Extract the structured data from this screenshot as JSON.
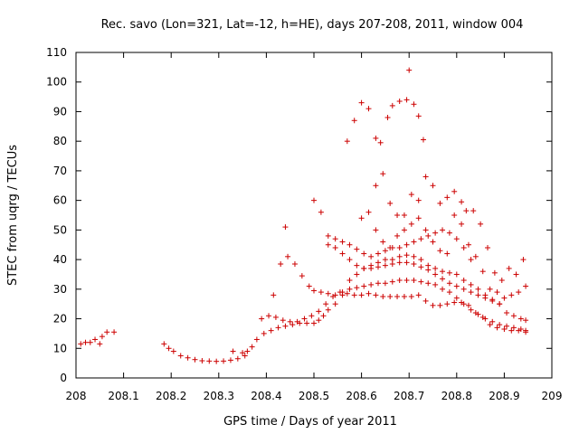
{
  "chart_data": {
    "type": "scatter",
    "title": "Rec. savo (Lon=321, Lat=-12, h=HE), days 207-208, 2011, window 004",
    "xlabel": "GPS time / Days of year 2011",
    "ylabel": "STEC from uqrg / TECUs",
    "xlim": [
      208,
      209
    ],
    "ylim": [
      0,
      110
    ],
    "xticks": [
      "208",
      "208.1",
      "208.2",
      "208.3",
      "208.4",
      "208.5",
      "208.6",
      "208.7",
      "208.8",
      "208.9",
      "209"
    ],
    "yticks": [
      "0",
      "10",
      "20",
      "30",
      "40",
      "50",
      "60",
      "70",
      "80",
      "90",
      "100",
      "110"
    ],
    "grid": false,
    "marker": "+",
    "colors": {
      "points": "#cc0000",
      "axes": "#000000"
    },
    "series": [
      {
        "name": "STEC",
        "points": [
          [
            208.01,
            11.5
          ],
          [
            208.02,
            12
          ],
          [
            208.03,
            12
          ],
          [
            208.04,
            13
          ],
          [
            208.05,
            11.5
          ],
          [
            208.055,
            14
          ],
          [
            208.065,
            15.5
          ],
          [
            208.08,
            15.5
          ],
          [
            208.185,
            11.5
          ],
          [
            208.195,
            10
          ],
          [
            208.205,
            9
          ],
          [
            208.22,
            7.5
          ],
          [
            208.235,
            6.8
          ],
          [
            208.25,
            6.2
          ],
          [
            208.265,
            5.8
          ],
          [
            208.28,
            5.7
          ],
          [
            208.295,
            5.6
          ],
          [
            208.31,
            5.7
          ],
          [
            208.325,
            6
          ],
          [
            208.34,
            6.5
          ],
          [
            208.355,
            7.5
          ],
          [
            208.36,
            9
          ],
          [
            208.37,
            10.5
          ],
          [
            208.33,
            9
          ],
          [
            208.35,
            8.5
          ],
          [
            208.38,
            13
          ],
          [
            208.395,
            15
          ],
          [
            208.41,
            16
          ],
          [
            208.425,
            17
          ],
          [
            208.44,
            17.5
          ],
          [
            208.455,
            18
          ],
          [
            208.47,
            18.5
          ],
          [
            208.485,
            18.5
          ],
          [
            208.5,
            18.5
          ],
          [
            208.51,
            19.5
          ],
          [
            208.52,
            21
          ],
          [
            208.53,
            23
          ],
          [
            208.545,
            25
          ],
          [
            208.56,
            28
          ],
          [
            208.575,
            30
          ],
          [
            208.59,
            30.5
          ],
          [
            208.605,
            31
          ],
          [
            208.62,
            31.5
          ],
          [
            208.635,
            32
          ],
          [
            208.65,
            32
          ],
          [
            208.665,
            32.5
          ],
          [
            208.68,
            33
          ],
          [
            208.695,
            33
          ],
          [
            208.71,
            33
          ],
          [
            208.725,
            32.5
          ],
          [
            208.74,
            32
          ],
          [
            208.755,
            31.5
          ],
          [
            208.77,
            30
          ],
          [
            208.785,
            29
          ],
          [
            208.8,
            27
          ],
          [
            208.815,
            25
          ],
          [
            208.83,
            23
          ],
          [
            208.845,
            21.5
          ],
          [
            208.86,
            20
          ],
          [
            208.875,
            19
          ],
          [
            208.89,
            18
          ],
          [
            208.905,
            17.5
          ],
          [
            208.92,
            17
          ],
          [
            208.935,
            16.5
          ],
          [
            208.945,
            16
          ],
          [
            208.39,
            20
          ],
          [
            208.405,
            21
          ],
          [
            208.42,
            20.5
          ],
          [
            208.435,
            19.5
          ],
          [
            208.45,
            19
          ],
          [
            208.465,
            19
          ],
          [
            208.48,
            20
          ],
          [
            208.495,
            21
          ],
          [
            208.51,
            22.5
          ],
          [
            208.525,
            25
          ],
          [
            208.54,
            27.5
          ],
          [
            208.555,
            29
          ],
          [
            208.57,
            28.5
          ],
          [
            208.585,
            28
          ],
          [
            208.6,
            28
          ],
          [
            208.615,
            28.5
          ],
          [
            208.63,
            28
          ],
          [
            208.645,
            27.5
          ],
          [
            208.66,
            27.5
          ],
          [
            208.675,
            27.5
          ],
          [
            208.69,
            27.5
          ],
          [
            208.705,
            27.5
          ],
          [
            208.72,
            28
          ],
          [
            208.735,
            26
          ],
          [
            208.75,
            24.5
          ],
          [
            208.765,
            24.5
          ],
          [
            208.78,
            25
          ],
          [
            208.795,
            25.5
          ],
          [
            208.81,
            25.5
          ],
          [
            208.825,
            24.5
          ],
          [
            208.84,
            22
          ],
          [
            208.855,
            20.5
          ],
          [
            208.87,
            18
          ],
          [
            208.885,
            17
          ],
          [
            208.9,
            16.5
          ],
          [
            208.915,
            16
          ],
          [
            208.93,
            16
          ],
          [
            208.945,
            15.5
          ],
          [
            208.415,
            28
          ],
          [
            208.43,
            38.5
          ],
          [
            208.445,
            41
          ],
          [
            208.46,
            38.5
          ],
          [
            208.475,
            34.5
          ],
          [
            208.49,
            31
          ],
          [
            208.5,
            29.5
          ],
          [
            208.515,
            29
          ],
          [
            208.53,
            28.5
          ],
          [
            208.545,
            28
          ],
          [
            208.56,
            29
          ],
          [
            208.575,
            33
          ],
          [
            208.59,
            35
          ],
          [
            208.605,
            37
          ],
          [
            208.62,
            38
          ],
          [
            208.635,
            39
          ],
          [
            208.65,
            40
          ],
          [
            208.665,
            40
          ],
          [
            208.68,
            41
          ],
          [
            208.695,
            41.5
          ],
          [
            208.71,
            41
          ],
          [
            208.725,
            40
          ],
          [
            208.74,
            38
          ],
          [
            208.755,
            37
          ],
          [
            208.77,
            36
          ],
          [
            208.785,
            35.5
          ],
          [
            208.8,
            35
          ],
          [
            208.815,
            33
          ],
          [
            208.83,
            31.5
          ],
          [
            208.845,
            30
          ],
          [
            208.86,
            28
          ],
          [
            208.875,
            26.5
          ],
          [
            208.89,
            25
          ],
          [
            208.905,
            22
          ],
          [
            208.92,
            21
          ],
          [
            208.935,
            20
          ],
          [
            208.945,
            19.5
          ],
          [
            208.44,
            51
          ],
          [
            208.5,
            60
          ],
          [
            208.515,
            56
          ],
          [
            208.53,
            48
          ],
          [
            208.545,
            44
          ],
          [
            208.56,
            42
          ],
          [
            208.575,
            40
          ],
          [
            208.59,
            38
          ],
          [
            208.605,
            37
          ],
          [
            208.62,
            37
          ],
          [
            208.635,
            37.5
          ],
          [
            208.65,
            38
          ],
          [
            208.665,
            38.5
          ],
          [
            208.68,
            39
          ],
          [
            208.695,
            39
          ],
          [
            208.71,
            38.5
          ],
          [
            208.725,
            37.5
          ],
          [
            208.74,
            36.5
          ],
          [
            208.755,
            35
          ],
          [
            208.77,
            33.5
          ],
          [
            208.785,
            32
          ],
          [
            208.8,
            31
          ],
          [
            208.815,
            30
          ],
          [
            208.83,
            29
          ],
          [
            208.845,
            28
          ],
          [
            208.86,
            27
          ],
          [
            208.875,
            26
          ],
          [
            208.89,
            25
          ],
          [
            208.57,
            80
          ],
          [
            208.585,
            87
          ],
          [
            208.6,
            93
          ],
          [
            208.615,
            91
          ],
          [
            208.63,
            81
          ],
          [
            208.64,
            79.5
          ],
          [
            208.655,
            88
          ],
          [
            208.665,
            92
          ],
          [
            208.68,
            93.5
          ],
          [
            208.695,
            94
          ],
          [
            208.7,
            104
          ],
          [
            208.71,
            92.5
          ],
          [
            208.72,
            88.5
          ],
          [
            208.73,
            80.5
          ],
          [
            208.63,
            65
          ],
          [
            208.645,
            69
          ],
          [
            208.66,
            59
          ],
          [
            208.675,
            55
          ],
          [
            208.69,
            55
          ],
          [
            208.705,
            62
          ],
          [
            208.72,
            60
          ],
          [
            208.735,
            68
          ],
          [
            208.75,
            65
          ],
          [
            208.765,
            59
          ],
          [
            208.78,
            61
          ],
          [
            208.795,
            63
          ],
          [
            208.81,
            59.5
          ],
          [
            208.82,
            56.5
          ],
          [
            208.835,
            56.5
          ],
          [
            208.85,
            52
          ],
          [
            208.865,
            44
          ],
          [
            208.88,
            35.5
          ],
          [
            208.895,
            33
          ],
          [
            208.91,
            37
          ],
          [
            208.925,
            35
          ],
          [
            208.94,
            40
          ],
          [
            208.6,
            54
          ],
          [
            208.615,
            56
          ],
          [
            208.63,
            50
          ],
          [
            208.645,
            46
          ],
          [
            208.66,
            44
          ],
          [
            208.675,
            48
          ],
          [
            208.69,
            50
          ],
          [
            208.705,
            52
          ],
          [
            208.72,
            54
          ],
          [
            208.735,
            50
          ],
          [
            208.75,
            46
          ],
          [
            208.765,
            43
          ],
          [
            208.78,
            42
          ],
          [
            208.795,
            55
          ],
          [
            208.81,
            52
          ],
          [
            208.825,
            45
          ],
          [
            208.84,
            41
          ],
          [
            208.855,
            36
          ],
          [
            208.87,
            30
          ],
          [
            208.885,
            29
          ],
          [
            208.9,
            27
          ],
          [
            208.915,
            28
          ],
          [
            208.93,
            29
          ],
          [
            208.945,
            31
          ],
          [
            208.53,
            45
          ],
          [
            208.545,
            47
          ],
          [
            208.56,
            46
          ],
          [
            208.575,
            45
          ],
          [
            208.59,
            43.5
          ],
          [
            208.605,
            42
          ],
          [
            208.62,
            41
          ],
          [
            208.635,
            42
          ],
          [
            208.65,
            43
          ],
          [
            208.665,
            44
          ],
          [
            208.68,
            44
          ],
          [
            208.695,
            45
          ],
          [
            208.71,
            46
          ],
          [
            208.725,
            47
          ],
          [
            208.74,
            48
          ],
          [
            208.755,
            49
          ],
          [
            208.77,
            50
          ],
          [
            208.785,
            49
          ],
          [
            208.8,
            47
          ],
          [
            208.815,
            44
          ],
          [
            208.83,
            40
          ]
        ]
      }
    ]
  }
}
